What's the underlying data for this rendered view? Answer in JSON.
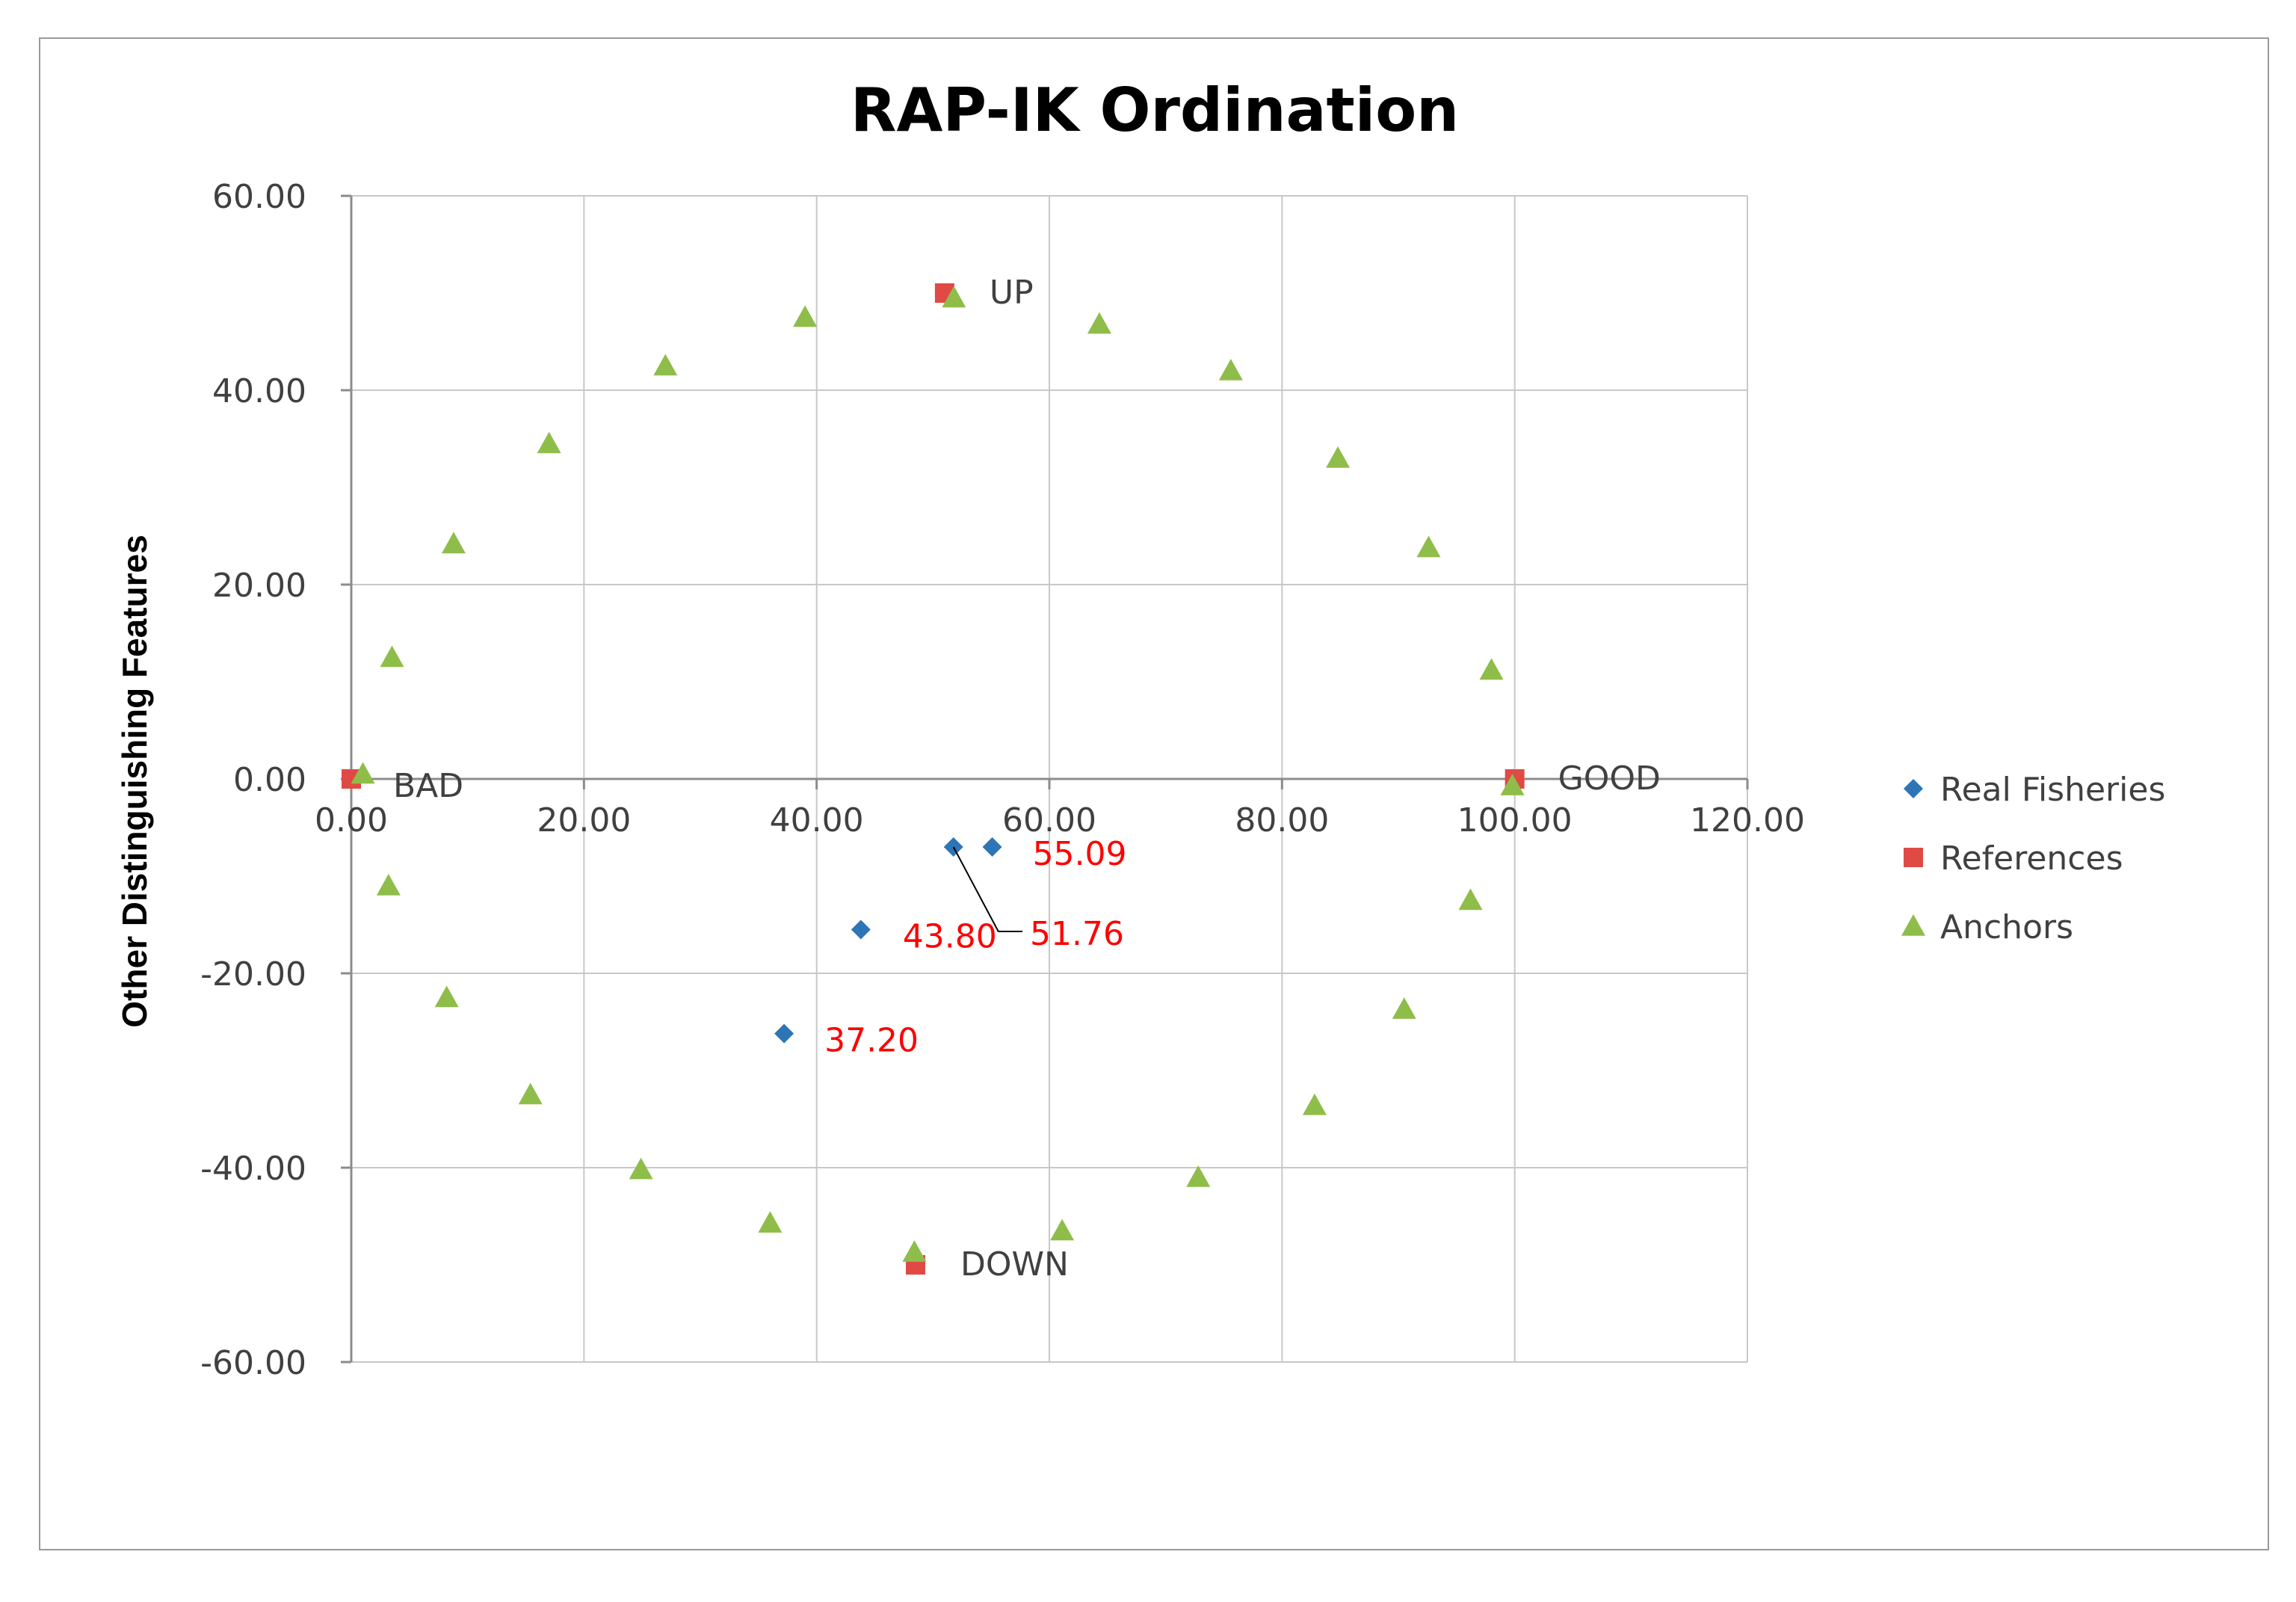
{
  "chart_data": {
    "type": "scatter",
    "title": "RAP-IK Ordination",
    "xlabel": "",
    "ylabel": "Other Distinguishing Features",
    "xlim": [
      0,
      120
    ],
    "ylim": [
      -60,
      60
    ],
    "x_ticks": [
      "0.00",
      "20.00",
      "40.00",
      "60.00",
      "80.00",
      "100.00",
      "120.00"
    ],
    "x_tick_values": [
      0,
      20,
      40,
      60,
      80,
      100,
      120
    ],
    "y_ticks": [
      "60.00",
      "40.00",
      "20.00",
      "0.00",
      "-20.00",
      "-40.00",
      "-60.00"
    ],
    "y_tick_values": [
      60,
      40,
      20,
      0,
      -20,
      -40,
      -60
    ],
    "grid": true,
    "legend_position": "right",
    "series": [
      {
        "name": "Real Fisheries",
        "marker": "diamond",
        "color": "#2e75b6",
        "points": [
          {
            "x": 55.09,
            "y": -7,
            "label": "55.09"
          },
          {
            "x": 51.76,
            "y": -7,
            "label": "51.76"
          },
          {
            "x": 43.8,
            "y": -15.5,
            "label": "43.80"
          },
          {
            "x": 37.2,
            "y": -26.2,
            "label": "37.20"
          }
        ]
      },
      {
        "name": "References",
        "marker": "square",
        "color": "#e04a45",
        "points": [
          {
            "x": 0,
            "y": 0,
            "label": "BAD"
          },
          {
            "x": 100,
            "y": 0,
            "label": "GOOD"
          },
          {
            "x": 51,
            "y": 50,
            "label": "UP"
          },
          {
            "x": 48.5,
            "y": -50,
            "label": "DOWN"
          }
        ]
      },
      {
        "name": "Anchors",
        "marker": "triangle",
        "color": "#8fbd4a",
        "points": [
          {
            "x": 1,
            "y": 0.5
          },
          {
            "x": 3.5,
            "y": 12.5
          },
          {
            "x": 8.8,
            "y": 24.2
          },
          {
            "x": 17,
            "y": 34.5
          },
          {
            "x": 27,
            "y": 42.5
          },
          {
            "x": 39,
            "y": 47.5
          },
          {
            "x": 51.8,
            "y": 49.5
          },
          {
            "x": 64.3,
            "y": 46.8
          },
          {
            "x": 75.6,
            "y": 42
          },
          {
            "x": 84.8,
            "y": 33
          },
          {
            "x": 92.6,
            "y": 23.8
          },
          {
            "x": 98,
            "y": 11.2
          },
          {
            "x": 99.8,
            "y": -0.7
          },
          {
            "x": 3.2,
            "y": -11
          },
          {
            "x": 8.2,
            "y": -22.5
          },
          {
            "x": 15.4,
            "y": -32.5
          },
          {
            "x": 24.9,
            "y": -40.2
          },
          {
            "x": 36,
            "y": -45.7
          },
          {
            "x": 48.4,
            "y": -48.7
          },
          {
            "x": 61.1,
            "y": -46.5
          },
          {
            "x": 72.8,
            "y": -41
          },
          {
            "x": 82.8,
            "y": -33.6
          },
          {
            "x": 90.5,
            "y": -23.7
          },
          {
            "x": 96.2,
            "y": -12.5
          }
        ]
      }
    ],
    "annotations": [
      {
        "text": "UP",
        "x": 51,
        "y": 50
      },
      {
        "text": "DOWN",
        "x": 48.5,
        "y": -50
      },
      {
        "text": "BAD",
        "x": 0,
        "y": 0
      },
      {
        "text": "GOOD",
        "x": 100,
        "y": 0
      }
    ]
  }
}
